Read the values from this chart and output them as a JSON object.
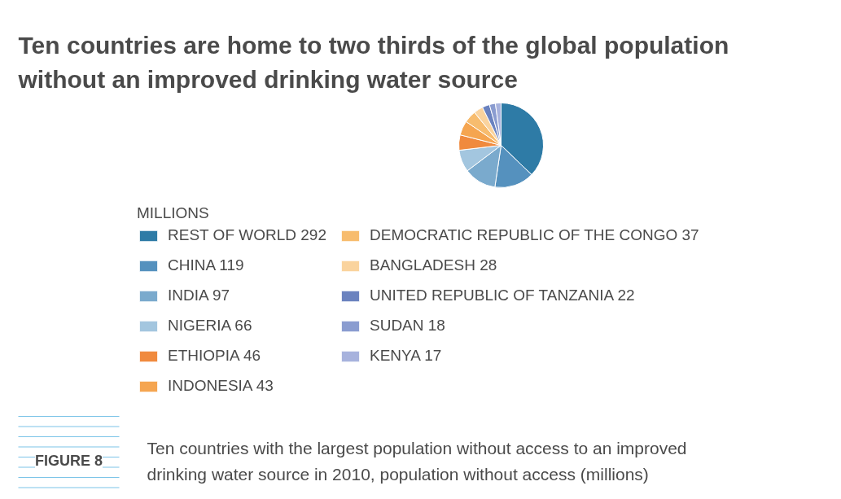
{
  "chart_data": {
    "type": "pie",
    "title": "Ten countries are home to two thirds of the global population\nwithout an improved drinking water source",
    "legend_title": "MILLIONS",
    "categories": [
      "REST OF WORLD 292",
      "CHINA 119",
      "INDIA 97",
      "NIGERIA 66",
      "ETHIOPIA 46",
      "INDONESIA 43",
      "DEMOCRATIC REPUBLIC OF THE CONGO 37",
      "BANGLADESH 28",
      "UNITED REPUBLIC OF TANZANIA 22",
      "SUDAN 18",
      "KENYA 17"
    ],
    "values": [
      292,
      119,
      97,
      66,
      46,
      43,
      37,
      28,
      22,
      18,
      17
    ],
    "colors": [
      "#2e7ba6",
      "#5591be",
      "#7aaacd",
      "#a3c6df",
      "#f08a3e",
      "#f5a550",
      "#f7bc6e",
      "#fad39d",
      "#6a82bf",
      "#8a9cd0",
      "#a7b2dd"
    ],
    "legend": "bottom",
    "annotations": [
      "FIGURE 8",
      "Ten countries with the largest population without access to an improved\ndrinking water source in 2010, population without access (millions)"
    ]
  }
}
